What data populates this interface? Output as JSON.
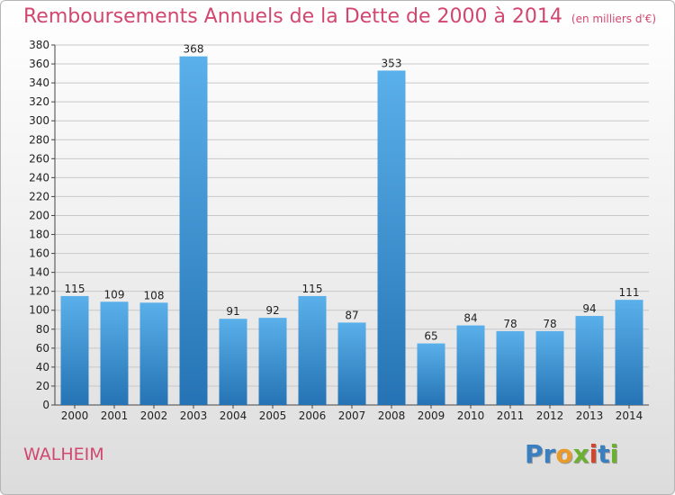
{
  "header": {
    "title": "Remboursements Annuels de la Dette de 2000 à 2014",
    "unit": "(en milliers d'€)"
  },
  "footer": {
    "commune": "WALHEIM",
    "logo_letters": [
      "P",
      "r",
      "o",
      "x",
      "i",
      "t",
      "i"
    ],
    "logo_colors": [
      "#3a7fc0",
      "#3a7fc0",
      "#e89a2b",
      "#6bb02e",
      "#d2462e",
      "#3a7fc0",
      "#6bb02e"
    ]
  },
  "colors": {
    "bar_light": "#5ab0ea",
    "bar_dark": "#2573b4",
    "grid": "#c8c8c8",
    "title": "#d1476f"
  },
  "chart_data": {
    "type": "bar",
    "title": "Remboursements Annuels de la Dette de 2000 à 2014",
    "subtitle": "(en milliers d'€)",
    "xlabel": "",
    "ylabel": "",
    "categories": [
      "2000",
      "2001",
      "2002",
      "2003",
      "2004",
      "2005",
      "2006",
      "2007",
      "2008",
      "2009",
      "2010",
      "2011",
      "2012",
      "2013",
      "2014"
    ],
    "values": [
      115,
      109,
      108,
      368,
      91,
      92,
      115,
      87,
      353,
      65,
      84,
      78,
      78,
      94,
      111
    ],
    "ylim": [
      0,
      380
    ],
    "ytick_step": 20,
    "grid": true,
    "legend": "none"
  }
}
